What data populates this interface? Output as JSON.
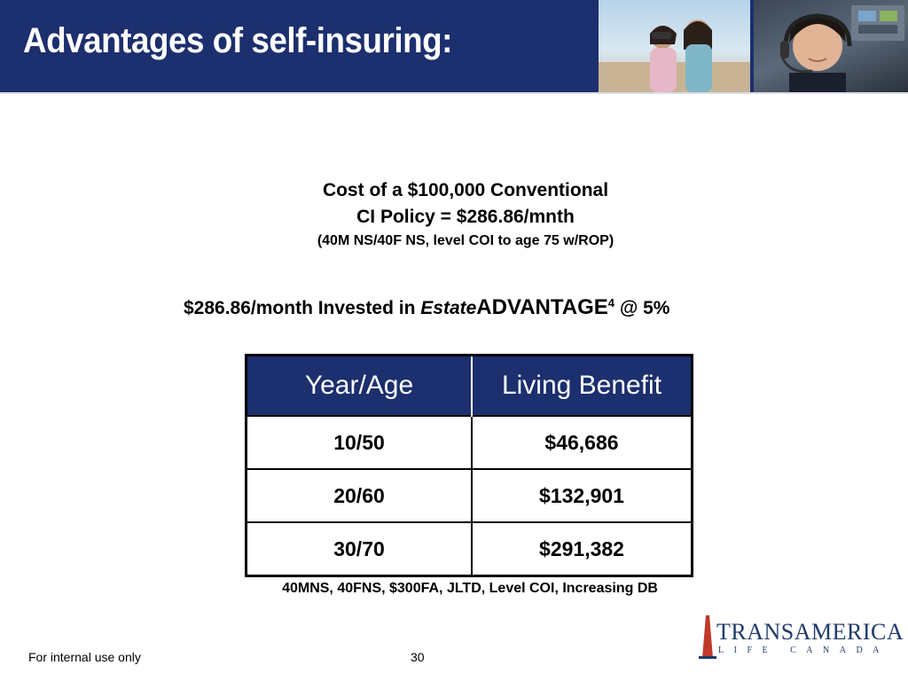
{
  "header": {
    "title": "Advantages of self-insuring:",
    "bg_color": "#1c2f6e"
  },
  "cost": {
    "line1": "Cost of a $100,000 Conventional",
    "line2": "CI Policy = $286.86/mnth",
    "line3": "(40M NS/40F NS, level COI to age 75 w/ROP)"
  },
  "invested": {
    "prefix": "$286.86/month Invested in ",
    "estate": "Estate",
    "advantage": "ADVANTAGE",
    "superscript": "4",
    "suffix": " @ 5%"
  },
  "table": {
    "headers": [
      "Year/Age",
      "Living Benefit"
    ],
    "rows": [
      [
        "10/50",
        "$46,686"
      ],
      [
        "20/60",
        "$132,901"
      ],
      [
        "30/70",
        "$291,382"
      ]
    ]
  },
  "footnote": "40MNS, 40FNS, $300FA,  JLTD, Level COI, Increasing DB",
  "footer": {
    "left": "For internal use only",
    "page": "30"
  },
  "logo": {
    "brand": "TRANSAMERICA",
    "sub": "LIFE CANADA",
    "color": "#1f3a6a",
    "accent": "#c0392b"
  }
}
